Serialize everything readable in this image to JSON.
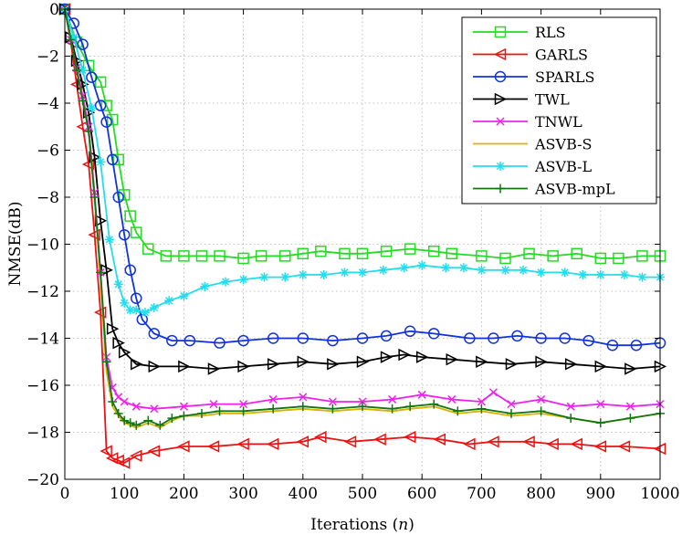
{
  "chart_data": {
    "type": "line",
    "xlabel": "Iterations",
    "xlabel_var": "n",
    "ylabel": "NMSE(dB)",
    "xlim": [
      0,
      1000
    ],
    "ylim": [
      -20,
      0
    ],
    "xticks": [
      0,
      100,
      200,
      300,
      400,
      500,
      600,
      700,
      800,
      900,
      1000
    ],
    "yticks": [
      0,
      -2,
      -4,
      -6,
      -8,
      -10,
      -12,
      -14,
      -16,
      -18,
      -20
    ],
    "grid": true,
    "legend_position": "top-right",
    "series": [
      {
        "name": "RLS",
        "color": "#22dd22",
        "marker": "square",
        "x": [
          0,
          20,
          40,
          60,
          70,
          80,
          90,
          100,
          110,
          120,
          140,
          170,
          200,
          230,
          260,
          300,
          330,
          370,
          400,
          430,
          470,
          500,
          540,
          580,
          620,
          650,
          700,
          740,
          780,
          820,
          860,
          900,
          930,
          970,
          1000
        ],
        "y": [
          0,
          -1.4,
          -2.4,
          -3.1,
          -4.1,
          -4.7,
          -6.4,
          -7.9,
          -8.8,
          -9.5,
          -10.2,
          -10.5,
          -10.5,
          -10.5,
          -10.5,
          -10.6,
          -10.5,
          -10.5,
          -10.4,
          -10.3,
          -10.4,
          -10.4,
          -10.3,
          -10.2,
          -10.3,
          -10.4,
          -10.5,
          -10.6,
          -10.4,
          -10.5,
          -10.4,
          -10.6,
          -10.6,
          -10.5,
          -10.5
        ]
      },
      {
        "name": "GARLS",
        "color": "#ee1111",
        "marker": "triangle-left",
        "x": [
          0,
          10,
          20,
          30,
          40,
          50,
          60,
          70,
          80,
          90,
          100,
          120,
          150,
          200,
          250,
          300,
          350,
          400,
          430,
          480,
          530,
          580,
          630,
          680,
          720,
          780,
          820,
          860,
          900,
          940,
          1000
        ],
        "y": [
          0,
          -1.4,
          -3.2,
          -5.0,
          -6.6,
          -9.6,
          -12.9,
          -18.8,
          -19.1,
          -19.2,
          -19.3,
          -19.0,
          -18.8,
          -18.6,
          -18.6,
          -18.5,
          -18.5,
          -18.4,
          -18.2,
          -18.4,
          -18.3,
          -18.2,
          -18.3,
          -18.5,
          -18.4,
          -18.4,
          -18.5,
          -18.5,
          -18.6,
          -18.6,
          -18.7
        ]
      },
      {
        "name": "SPARLS",
        "color": "#1133dd",
        "marker": "circle",
        "x": [
          0,
          15,
          30,
          45,
          60,
          70,
          80,
          90,
          100,
          110,
          120,
          130,
          150,
          180,
          210,
          260,
          300,
          350,
          400,
          450,
          500,
          540,
          580,
          620,
          680,
          720,
          760,
          800,
          840,
          880,
          920,
          960,
          1000
        ],
        "y": [
          0,
          -0.6,
          -1.5,
          -2.9,
          -4.1,
          -4.8,
          -6.4,
          -8.0,
          -9.6,
          -11.1,
          -12.3,
          -13.2,
          -13.8,
          -14.1,
          -14.1,
          -14.2,
          -14.1,
          -14.0,
          -14.0,
          -14.1,
          -14.0,
          -13.9,
          -13.7,
          -13.8,
          -14.0,
          -14.0,
          -13.9,
          -14.0,
          -14.0,
          -14.1,
          -14.3,
          -14.3,
          -14.2
        ]
      },
      {
        "name": "TWL",
        "color": "#000000",
        "marker": "triangle-right",
        "x": [
          0,
          10,
          20,
          30,
          40,
          50,
          60,
          70,
          80,
          90,
          100,
          120,
          150,
          200,
          250,
          300,
          350,
          400,
          450,
          500,
          540,
          570,
          600,
          650,
          700,
          750,
          800,
          850,
          900,
          950,
          1000
        ],
        "y": [
          0,
          -1.2,
          -2.2,
          -3.2,
          -4.4,
          -6.3,
          -9.0,
          -11.1,
          -13.6,
          -14.2,
          -14.6,
          -15.1,
          -15.2,
          -15.2,
          -15.3,
          -15.2,
          -15.1,
          -15.0,
          -15.1,
          -15.0,
          -14.8,
          -14.7,
          -14.8,
          -14.9,
          -15.0,
          -15.1,
          -15.0,
          -15.1,
          -15.2,
          -15.3,
          -15.2
        ]
      },
      {
        "name": "TNWL",
        "color": "#ee22ee",
        "marker": "x",
        "x": [
          0,
          10,
          20,
          30,
          40,
          50,
          60,
          70,
          80,
          90,
          100,
          120,
          150,
          200,
          250,
          300,
          350,
          400,
          450,
          500,
          550,
          600,
          650,
          700,
          720,
          750,
          800,
          850,
          900,
          950,
          1000
        ],
        "y": [
          0,
          -1.3,
          -2.5,
          -3.7,
          -5.0,
          -7.8,
          -11.2,
          -14.8,
          -16.1,
          -16.5,
          -16.7,
          -16.9,
          -17.0,
          -16.9,
          -16.8,
          -16.8,
          -16.6,
          -16.5,
          -16.7,
          -16.7,
          -16.6,
          -16.4,
          -16.6,
          -16.7,
          -16.3,
          -16.8,
          -16.6,
          -16.9,
          -16.8,
          -16.9,
          -16.8
        ]
      },
      {
        "name": "ASVB-S",
        "color": "#e0b000",
        "marker": "none",
        "x": [
          0,
          10,
          20,
          30,
          40,
          50,
          60,
          70,
          80,
          90,
          100,
          110,
          120,
          140,
          160,
          180,
          200,
          230,
          260,
          300,
          350,
          400,
          450,
          500,
          550,
          580,
          620,
          660,
          700,
          750,
          800,
          850,
          900,
          950,
          1000
        ],
        "y": [
          0,
          -1.3,
          -2.6,
          -3.9,
          -5.2,
          -8.0,
          -11.5,
          -15.4,
          -16.9,
          -17.3,
          -17.6,
          -17.7,
          -17.8,
          -17.6,
          -17.8,
          -17.5,
          -17.3,
          -17.3,
          -17.2,
          -17.2,
          -17.1,
          -17.0,
          -17.1,
          -17.0,
          -17.1,
          -17.0,
          -16.9,
          -17.2,
          -17.1,
          -17.3,
          -17.2,
          -17.4,
          -17.6,
          -17.4,
          -17.2
        ]
      },
      {
        "name": "ASVB-L",
        "color": "#22ddee",
        "marker": "asterisk",
        "x": [
          0,
          15,
          30,
          45,
          60,
          75,
          90,
          100,
          110,
          120,
          135,
          150,
          175,
          200,
          235,
          270,
          300,
          335,
          370,
          400,
          435,
          470,
          500,
          535,
          570,
          600,
          640,
          670,
          700,
          740,
          770,
          800,
          840,
          870,
          900,
          940,
          970,
          1000
        ],
        "y": [
          0,
          -1.2,
          -2.6,
          -4.2,
          -6.5,
          -9.8,
          -11.7,
          -12.5,
          -12.8,
          -12.8,
          -12.9,
          -12.7,
          -12.4,
          -12.2,
          -11.8,
          -11.6,
          -11.5,
          -11.4,
          -11.4,
          -11.3,
          -11.3,
          -11.2,
          -11.2,
          -11.1,
          -11.0,
          -10.9,
          -11.0,
          -11.0,
          -11.1,
          -11.1,
          -11.1,
          -11.2,
          -11.2,
          -11.3,
          -11.3,
          -11.3,
          -11.4,
          -11.4
        ]
      },
      {
        "name": "ASVB-mpL",
        "color": "#117711",
        "marker": "plus",
        "x": [
          0,
          10,
          20,
          30,
          40,
          50,
          60,
          70,
          80,
          90,
          100,
          110,
          120,
          140,
          160,
          180,
          200,
          230,
          260,
          300,
          350,
          400,
          450,
          500,
          550,
          580,
          620,
          660,
          700,
          750,
          800,
          850,
          900,
          950,
          1000
        ],
        "y": [
          0,
          -1.3,
          -2.6,
          -3.9,
          -5.2,
          -8.0,
          -11.2,
          -15.0,
          -16.7,
          -17.2,
          -17.5,
          -17.6,
          -17.7,
          -17.5,
          -17.7,
          -17.4,
          -17.3,
          -17.2,
          -17.1,
          -17.1,
          -17.0,
          -16.9,
          -17.0,
          -16.9,
          -17.0,
          -16.9,
          -16.8,
          -17.1,
          -17.0,
          -17.2,
          -17.1,
          -17.4,
          -17.6,
          -17.4,
          -17.2
        ]
      }
    ]
  }
}
